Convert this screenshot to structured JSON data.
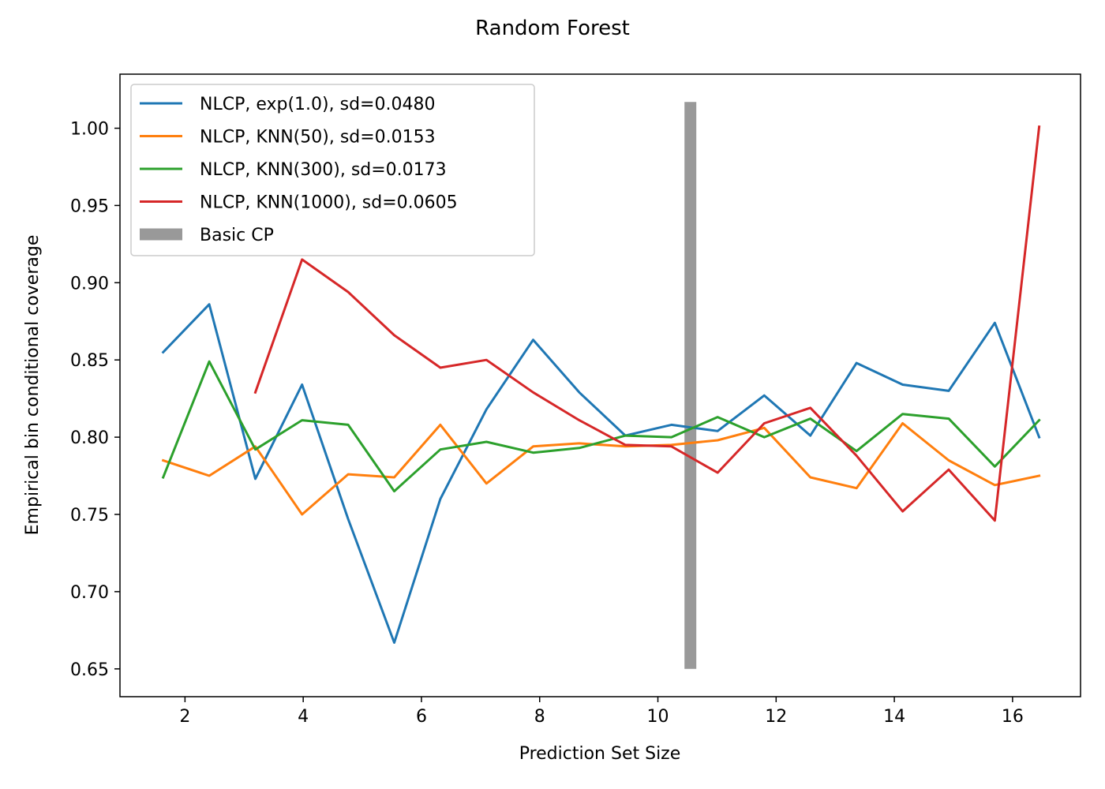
{
  "chart_data": {
    "type": "line",
    "title": "Random Forest",
    "xlabel": "Prediction Set Size",
    "ylabel": "Empirical bin conditional coverage",
    "xlim": [
      0.9,
      17.15
    ],
    "ylim": [
      0.632,
      1.035
    ],
    "xticks": [
      2,
      4,
      6,
      8,
      10,
      12,
      14,
      16
    ],
    "yticks": [
      0.65,
      0.7,
      0.75,
      0.8,
      0.85,
      0.9,
      0.95,
      1.0
    ],
    "ytick_labels": [
      "0.65",
      "0.70",
      "0.75",
      "0.80",
      "0.85",
      "0.90",
      "0.95",
      "1.00"
    ],
    "grid": false,
    "legend_position": "upper-left",
    "series": [
      {
        "name": "NLCP, exp(1.0), sd=0.0480",
        "color": "#1f77b4",
        "x": [
          1.63,
          2.41,
          3.19,
          3.98,
          4.76,
          5.54,
          6.32,
          7.1,
          7.89,
          8.67,
          9.45,
          10.23,
          11.01,
          11.8,
          12.58,
          13.36,
          14.14,
          14.92,
          15.7,
          16.45
        ],
        "y": [
          0.855,
          0.886,
          0.773,
          0.834,
          0.747,
          0.667,
          0.76,
          0.818,
          0.863,
          0.829,
          0.801,
          0.808,
          0.804,
          0.827,
          0.801,
          0.848,
          0.834,
          0.83,
          0.874,
          0.8
        ]
      },
      {
        "name": "NLCP, KNN(50), sd=0.0153",
        "color": "#ff7f0e",
        "x": [
          1.63,
          2.41,
          3.19,
          3.98,
          4.76,
          5.54,
          6.32,
          7.1,
          7.89,
          8.67,
          9.45,
          10.23,
          11.01,
          11.8,
          12.58,
          13.36,
          14.14,
          14.92,
          15.7,
          16.45
        ],
        "y": [
          0.785,
          0.775,
          0.794,
          0.75,
          0.776,
          0.774,
          0.808,
          0.77,
          0.794,
          0.796,
          0.794,
          0.795,
          0.798,
          0.806,
          0.774,
          0.767,
          0.809,
          0.785,
          0.769,
          0.775
        ]
      },
      {
        "name": "NLCP, KNN(300), sd=0.0173",
        "color": "#2ca02c",
        "x": [
          1.63,
          2.41,
          3.19,
          3.98,
          4.76,
          5.54,
          6.32,
          7.1,
          7.89,
          8.67,
          9.45,
          10.23,
          11.01,
          11.8,
          12.58,
          13.36,
          14.14,
          14.92,
          15.7,
          16.45
        ],
        "y": [
          0.774,
          0.849,
          0.792,
          0.811,
          0.808,
          0.765,
          0.792,
          0.797,
          0.79,
          0.793,
          0.801,
          0.8,
          0.813,
          0.8,
          0.812,
          0.791,
          0.815,
          0.812,
          0.781,
          0.811
        ]
      },
      {
        "name": "NLCP, KNN(1000), sd=0.0605",
        "color": "#d62728",
        "x": [
          3.19,
          3.98,
          4.76,
          5.54,
          6.32,
          7.1,
          7.89,
          8.67,
          9.45,
          10.23,
          11.01,
          11.8,
          12.58,
          13.36,
          14.14,
          14.92,
          15.7,
          16.45
        ],
        "y": [
          0.829,
          0.915,
          0.894,
          0.866,
          0.845,
          0.85,
          0.829,
          0.811,
          0.795,
          0.794,
          0.777,
          0.809,
          0.819,
          0.788,
          0.752,
          0.779,
          0.746,
          1.001
        ]
      }
    ],
    "reference_bar": {
      "name": "Basic CP",
      "color": "#999999",
      "x": 10.55,
      "y_range": [
        0.65,
        1.017
      ]
    }
  }
}
